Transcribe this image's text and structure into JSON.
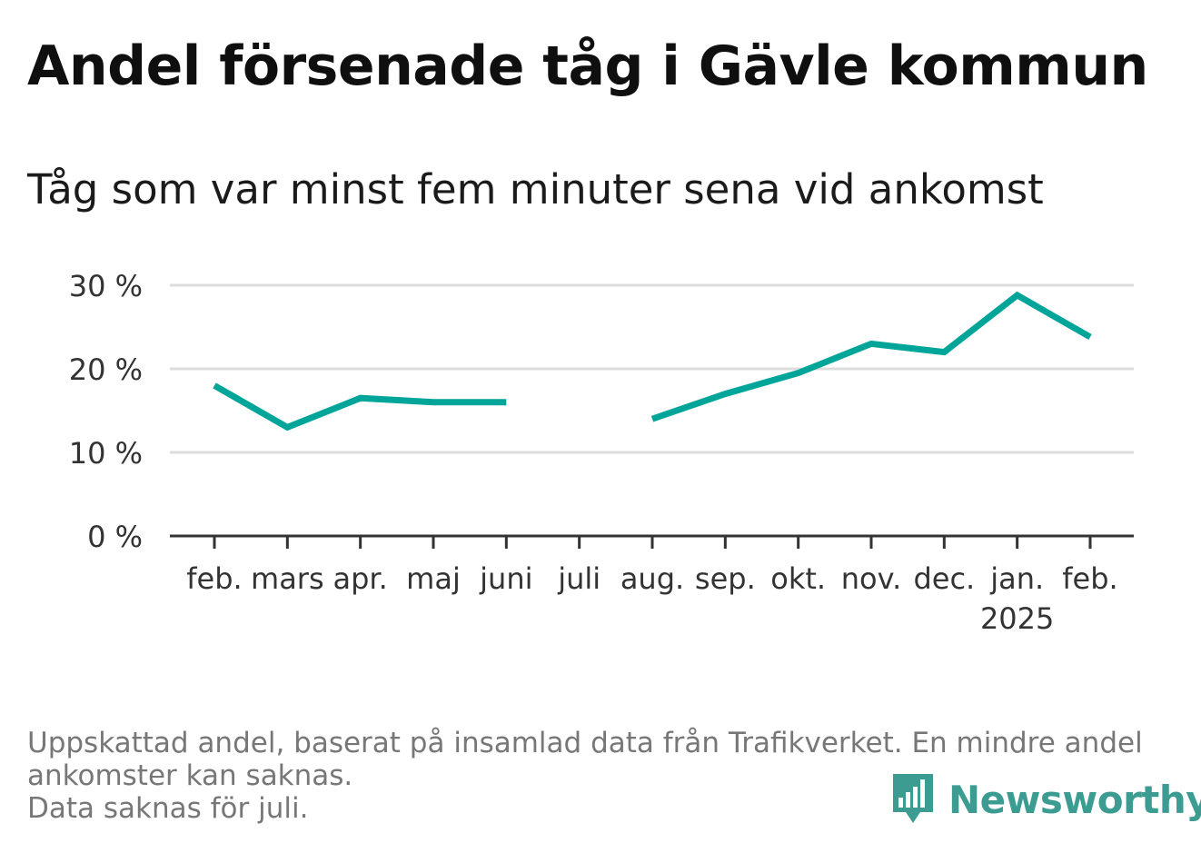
{
  "title": "Andel försenade tåg i Gävle kommun",
  "subtitle": "Tåg som var minst fem minuter sena vid ankomst",
  "footnote": {
    "line1": "Uppskattad andel, baserat på insamlad data från Trafikverket. En mindre andel",
    "line2": "ankomster kan saknas.",
    "line3": "Data saknas för juli."
  },
  "brand": {
    "name": "Newsworthy",
    "icon": "newsworthy-logo-icon",
    "color": "#3c9c92"
  },
  "colors": {
    "line": "#00a59a",
    "grid": "#dddddd",
    "axis": "#333333"
  },
  "chart_data": {
    "type": "line",
    "title": "Andel försenade tåg i Gävle kommun",
    "subtitle": "Tåg som var minst fem minuter sena vid ankomst",
    "categories": [
      "feb.",
      "mars",
      "apr.",
      "maj",
      "juni",
      "juli",
      "aug.",
      "sep.",
      "okt.",
      "nov.",
      "dec.",
      "jan.",
      "feb."
    ],
    "year_labels": [
      "",
      "",
      "",
      "",
      "",
      "",
      "",
      "",
      "",
      "",
      "",
      "2025",
      ""
    ],
    "values": [
      18,
      13,
      16.5,
      16,
      16,
      null,
      14,
      17,
      19.5,
      23,
      22,
      28.8,
      23.8
    ],
    "y_ticks": [
      0,
      10,
      20,
      30
    ],
    "y_tick_labels": [
      "0 %",
      "10 %",
      "20 %",
      "30 %"
    ],
    "ylim": [
      0,
      30
    ],
    "grid": true,
    "legend": "none"
  }
}
